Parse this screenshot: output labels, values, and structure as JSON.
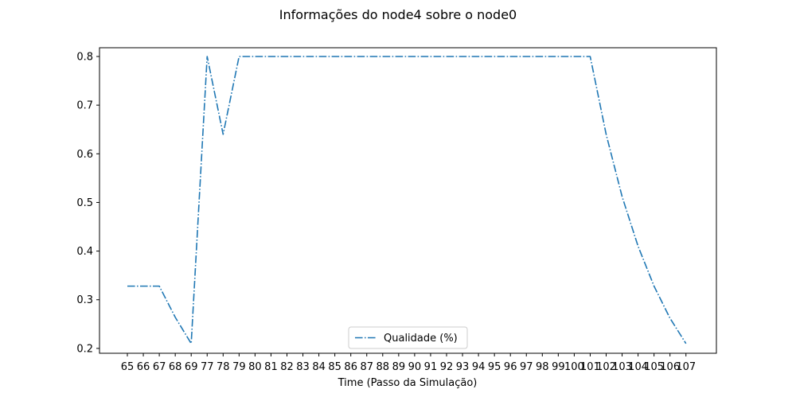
{
  "chart_data": {
    "type": "line",
    "title": "Informações do node4 sobre o node0",
    "xlabel": "Time (Passo da Simulação)",
    "ylabel": "",
    "categories": [
      "65",
      "66",
      "67",
      "68",
      "69",
      "77",
      "78",
      "79",
      "80",
      "81",
      "82",
      "83",
      "84",
      "85",
      "86",
      "87",
      "88",
      "89",
      "90",
      "91",
      "92",
      "93",
      "94",
      "95",
      "96",
      "97",
      "98",
      "99",
      "100",
      "101",
      "102",
      "103",
      "104",
      "105",
      "106",
      "107"
    ],
    "yticks": [
      "0.2",
      "0.3",
      "0.4",
      "0.5",
      "0.6",
      "0.7",
      "0.8"
    ],
    "ylim": [
      0.19,
      0.818
    ],
    "grid": false,
    "legend": "lower-center",
    "series": [
      {
        "name": "Qualidade (%)",
        "color": "#1f77b4",
        "linestyle": "dashdot",
        "values": [
          0.328,
          0.328,
          0.328,
          0.264,
          0.21,
          0.8,
          0.64,
          0.8,
          0.8,
          0.8,
          0.8,
          0.8,
          0.8,
          0.8,
          0.8,
          0.8,
          0.8,
          0.8,
          0.8,
          0.8,
          0.8,
          0.8,
          0.8,
          0.8,
          0.8,
          0.8,
          0.8,
          0.8,
          0.8,
          0.8,
          0.64,
          0.512,
          0.41,
          0.328,
          0.262,
          0.21
        ]
      }
    ]
  }
}
